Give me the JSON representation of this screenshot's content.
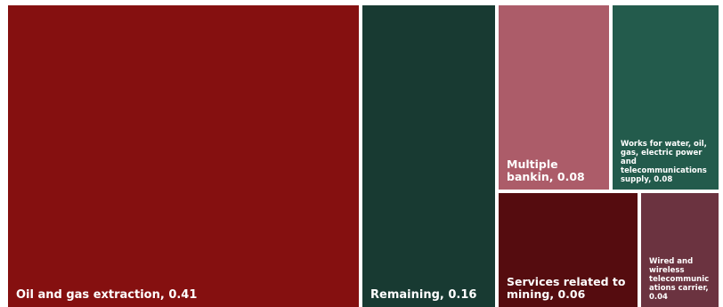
{
  "chart_data": {
    "type": "treemap",
    "items": [
      {
        "label": "Oil and gas extraction, 0.41",
        "value": 0.41,
        "color": "#851010"
      },
      {
        "label": "Remaining, 0.16",
        "value": 0.16,
        "color": "#183a32"
      },
      {
        "label": "Multiple bankin, 0.08",
        "value": 0.08,
        "color": "#ac5c69"
      },
      {
        "label": "Works for water, oil, gas, electric power and telecommunications supply, 0.08",
        "value": 0.08,
        "color": "#235b4c"
      },
      {
        "label": "Services related to mining, 0.06",
        "value": 0.06,
        "color": "#550c0f"
      },
      {
        "label": "Wired and wireless telecommunic ations carrier, 0.04",
        "value": 0.04,
        "color": "#6b3340"
      }
    ]
  }
}
